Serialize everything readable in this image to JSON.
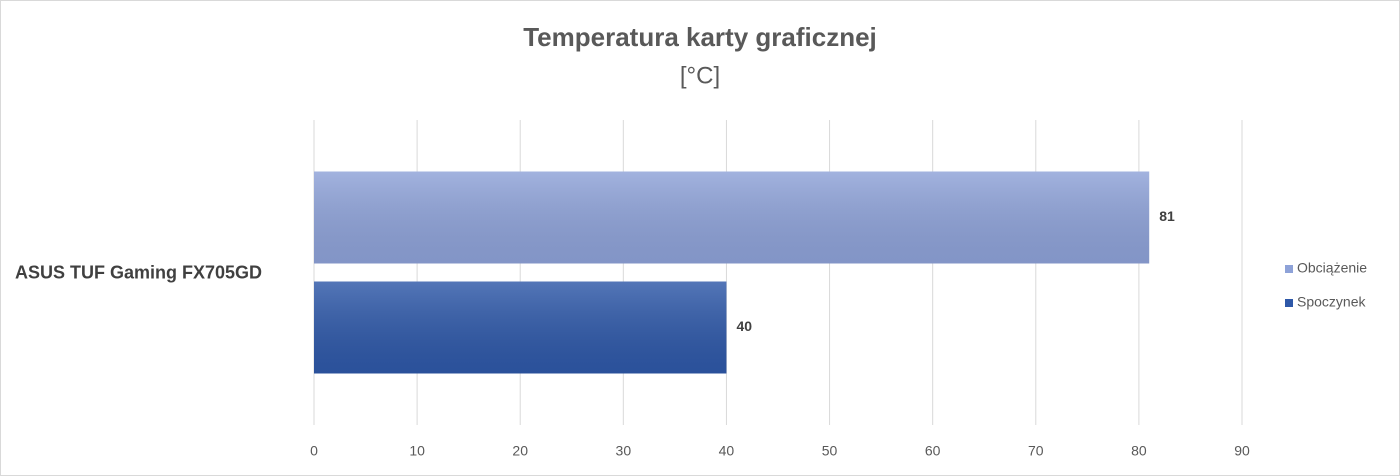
{
  "chart_data": {
    "type": "bar",
    "orientation": "horizontal",
    "title": "Temperatura karty graficznej",
    "subtitle": "[°C]",
    "categories": [
      "ASUS TUF Gaming FX705GD"
    ],
    "series": [
      {
        "name": "Obciążenie",
        "color": "#8ea2d8",
        "values": [
          81
        ]
      },
      {
        "name": "Spoczynek",
        "color": "#2e58a8",
        "values": [
          40
        ]
      }
    ],
    "xlim": [
      0,
      90
    ],
    "xticks": [
      0,
      10,
      20,
      30,
      40,
      50,
      60,
      70,
      80,
      90
    ],
    "grid": true,
    "legend": "right"
  }
}
